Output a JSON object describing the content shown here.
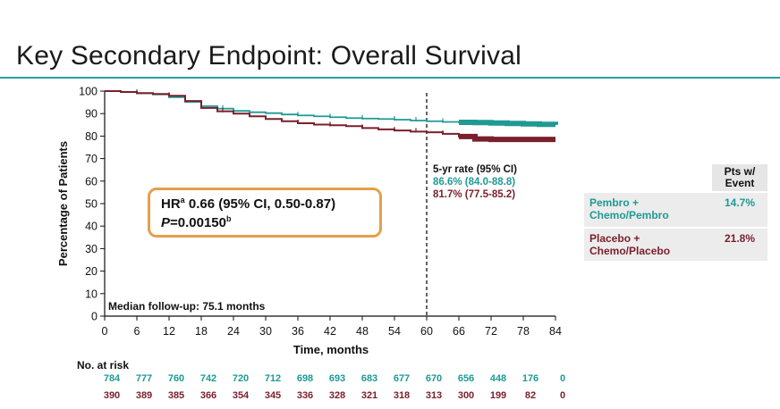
{
  "title": "Key Secondary Endpoint: Overall Survival",
  "colors": {
    "accent": "#2a9ea0",
    "pembro": "#1f9a93",
    "placebo": "#7a1f2b",
    "box_border": "#e5a04a"
  },
  "hr_box": {
    "hr_label": "HR",
    "hr_sup": "a",
    "hr_text": " 0.66 (95% CI, 0.50-0.87)",
    "p_label": "P",
    "p_text": "=0.00150",
    "p_sup": "b"
  },
  "median_followup": "Median follow-up: 75.1 months",
  "five_year": {
    "title": "5-yr rate (95% CI)",
    "pembro": "86.6% (84.0-88.8)",
    "placebo": "81.7% (77.5-85.2)"
  },
  "event_table": {
    "header": "Pts w/\nEvent",
    "rows": [
      {
        "arm": "Pembro +\nChemo/Pembro",
        "value": "14.7%"
      },
      {
        "arm": "Placebo +\nChemo/Placebo",
        "value": "21.8%"
      }
    ]
  },
  "risk": {
    "label": "No. at risk",
    "times": [
      0,
      6,
      12,
      18,
      24,
      30,
      36,
      42,
      48,
      54,
      60,
      66,
      72,
      78,
      84
    ],
    "pembro": [
      "784",
      "777",
      "760",
      "742",
      "720",
      "712",
      "698",
      "693",
      "683",
      "677",
      "670",
      "656",
      "448",
      "176",
      "0"
    ],
    "placebo": [
      "390",
      "389",
      "385",
      "366",
      "354",
      "345",
      "336",
      "328",
      "321",
      "318",
      "313",
      "300",
      "199",
      "82",
      "0"
    ]
  },
  "chart_data": {
    "type": "line",
    "title": "",
    "xlabel": "Time, months",
    "ylabel": "Percentage of Patients",
    "xlim": [
      0,
      84
    ],
    "ylim": [
      0,
      100
    ],
    "xticks": [
      0,
      6,
      12,
      18,
      24,
      30,
      36,
      42,
      48,
      54,
      60,
      66,
      72,
      78,
      84
    ],
    "yticks": [
      0,
      10,
      20,
      30,
      40,
      50,
      60,
      70,
      80,
      90,
      100
    ],
    "reference_line_x": 60,
    "series": [
      {
        "name": "Pembro + Chemo/Pembro",
        "x": [
          0,
          3,
          6,
          9,
          12,
          15,
          18,
          21,
          24,
          27,
          30,
          33,
          36,
          39,
          42,
          45,
          48,
          51,
          54,
          57,
          60,
          63,
          66,
          69,
          72,
          75,
          78,
          81,
          84
        ],
        "y": [
          100,
          99.6,
          99.0,
          98.5,
          97.3,
          95.2,
          93.3,
          92.2,
          91.2,
          90.6,
          90.2,
          89.6,
          89.2,
          88.8,
          88.4,
          88.0,
          87.8,
          87.6,
          87.3,
          86.9,
          86.6,
          86.3,
          86.1,
          86.0,
          85.8,
          85.6,
          85.4,
          85.2,
          85.0
        ]
      },
      {
        "name": "Placebo + Chemo/Placebo",
        "x": [
          0,
          3,
          6,
          9,
          12,
          15,
          18,
          21,
          24,
          27,
          30,
          33,
          36,
          39,
          42,
          45,
          48,
          51,
          54,
          57,
          60,
          63,
          66,
          69,
          72,
          75,
          78,
          81,
          84
        ],
        "y": [
          100,
          99.6,
          99.1,
          98.7,
          97.9,
          95.6,
          92.5,
          91.0,
          90.0,
          88.8,
          87.6,
          86.6,
          85.7,
          85.1,
          84.8,
          84.4,
          83.6,
          83.0,
          82.5,
          82.0,
          81.7,
          81.0,
          79.8,
          78.7,
          78.5,
          78.5,
          78.5,
          78.5,
          78.5
        ]
      }
    ],
    "annotations": [
      "Median follow-up: 75.1 months",
      "5-yr rate (95% CI)"
    ]
  }
}
